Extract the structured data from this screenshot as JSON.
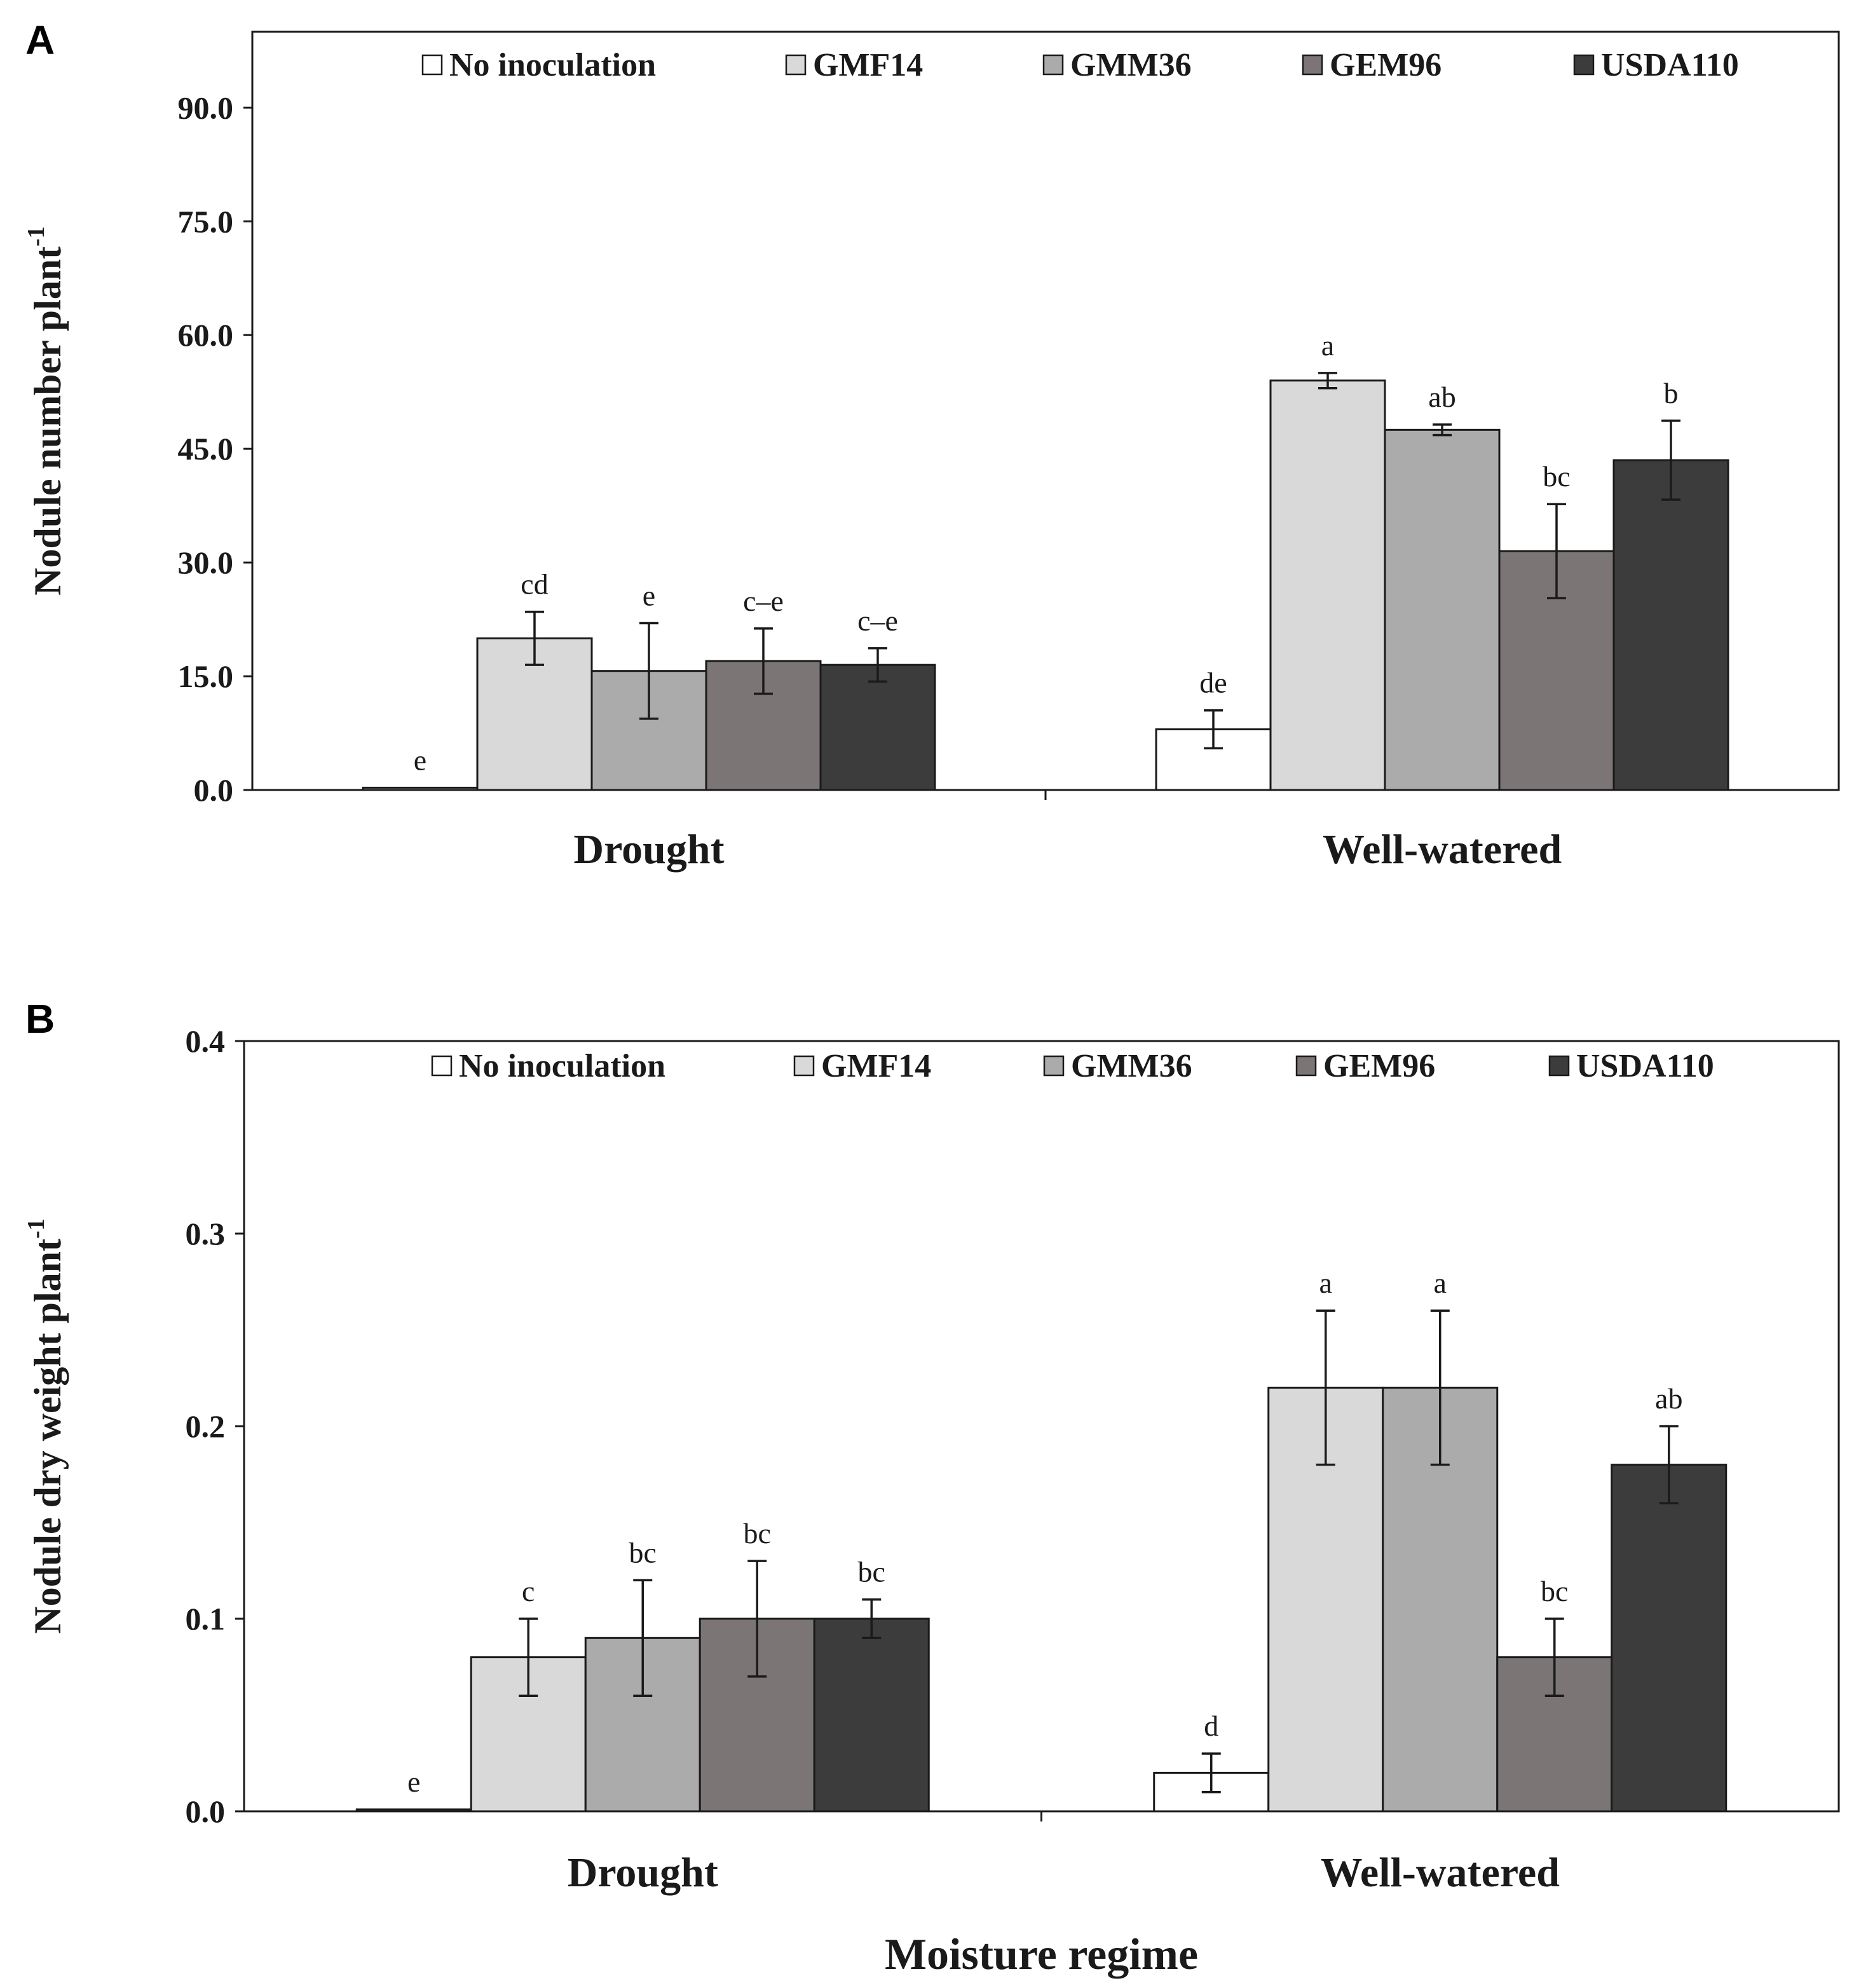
{
  "chart_data": [
    {
      "type": "bar",
      "panel_label": "A",
      "categories": [
        "Drought",
        "Well-watered"
      ],
      "ylabel": "Nodule number plant",
      "ylabel_sup": "-1",
      "xlabel": "",
      "ylim": [
        0,
        100
      ],
      "yticks": [
        "0.0",
        "15.0",
        "30.0",
        "45.0",
        "60.0",
        "75.0",
        "90.0"
      ],
      "ytick_values": [
        0,
        15,
        30,
        45,
        60,
        75,
        90
      ],
      "legend_position": "top",
      "series": [
        {
          "name": "No inoculation",
          "color": "#ffffff",
          "values": [
            0.3,
            8.0
          ],
          "errors": [
            0,
            2.5
          ],
          "sig": [
            "e",
            "de"
          ]
        },
        {
          "name": "GMF14",
          "color": "#d9d9d9",
          "values": [
            20.0,
            54.0
          ],
          "errors": [
            3.5,
            1.0
          ],
          "sig": [
            "cd",
            "a"
          ]
        },
        {
          "name": "GMM36",
          "color": "#ababab",
          "values": [
            15.7,
            47.5
          ],
          "errors": [
            6.3,
            0.7
          ],
          "sig": [
            "e",
            "ab"
          ]
        },
        {
          "name": "GEM96",
          "color": "#7b7575",
          "values": [
            17.0,
            31.5
          ],
          "errors": [
            4.3,
            6.2
          ],
          "sig": [
            "c–e",
            "bc"
          ]
        },
        {
          "name": "USDA110",
          "color": "#3c3c3c",
          "values": [
            16.5,
            43.5
          ],
          "errors": [
            2.2,
            5.2
          ],
          "sig": [
            "c–e",
            "b"
          ]
        }
      ]
    },
    {
      "type": "bar",
      "panel_label": "B",
      "categories": [
        "Drought",
        "Well-watered"
      ],
      "ylabel": "Nodule dry weight plant",
      "ylabel_sup": "-1",
      "xlabel": "Moisture regime",
      "ylim": [
        0,
        0.4
      ],
      "yticks": [
        "0.0",
        "0.1",
        "0.2",
        "0.3",
        "0.4"
      ],
      "ytick_values": [
        0,
        0.1,
        0.2,
        0.3,
        0.4
      ],
      "legend_position": "top",
      "series": [
        {
          "name": "No inoculation",
          "color": "#ffffff",
          "values": [
            0.001,
            0.02
          ],
          "errors": [
            0,
            0.01
          ],
          "sig": [
            "e",
            "d"
          ]
        },
        {
          "name": "GMF14",
          "color": "#d9d9d9",
          "values": [
            0.08,
            0.22
          ],
          "errors": [
            0.02,
            0.04
          ],
          "sig": [
            "c",
            "a"
          ]
        },
        {
          "name": "GMM36",
          "color": "#ababab",
          "values": [
            0.09,
            0.22
          ],
          "errors": [
            0.03,
            0.04
          ],
          "sig": [
            "bc",
            "a"
          ]
        },
        {
          "name": "GEM96",
          "color": "#7b7575",
          "values": [
            0.1,
            0.08
          ],
          "errors": [
            0.03,
            0.02
          ],
          "sig": [
            "bc",
            "bc"
          ]
        },
        {
          "name": "USDA110",
          "color": "#3c3c3c",
          "values": [
            0.1,
            0.18
          ],
          "errors": [
            0.01,
            0.02
          ],
          "sig": [
            "bc",
            "ab"
          ]
        }
      ]
    }
  ]
}
